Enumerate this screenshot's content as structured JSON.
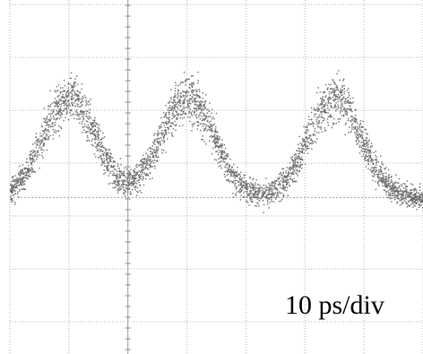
{
  "chart_data": {
    "type": "scatter",
    "title": "",
    "xlabel": "",
    "ylabel": "",
    "grid": true,
    "graticule": {
      "x_divisions": 7,
      "y_divisions": 6
    },
    "scale_annotation": "10 ps/div",
    "time_per_division_ps": 10,
    "x_range_ps": [
      0,
      70
    ],
    "y_range_div": [
      0,
      6
    ],
    "series": [
      {
        "baseline_level_div": 2.35,
        "baseline_noise_div": 0.15,
        "pulse_centers_ps": [
          10,
          30,
          55
        ],
        "pulse_amplitude_div": 1.9,
        "pulse_width_ps": 4.5
      }
    ],
    "colors": {
      "points": "#6a6a6a",
      "grid": "#b4b4b4",
      "background": "#ffffff"
    }
  }
}
